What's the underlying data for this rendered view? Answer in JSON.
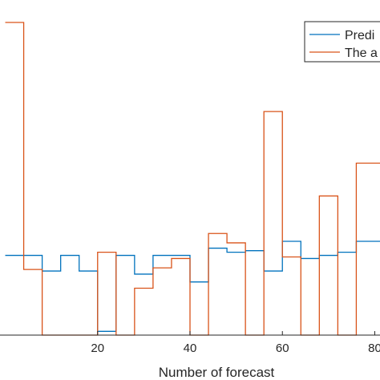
{
  "chart_data": {
    "type": "line",
    "xlabel": "Number of forecast",
    "ylabel": "",
    "title": "",
    "xlim": [
      -2,
      82
    ],
    "ylim": [
      0,
      1.0
    ],
    "xticks": [
      20,
      40,
      60,
      80
    ],
    "xtick_labels": [
      "20",
      "40",
      "60",
      "80"
    ],
    "grid": false,
    "legend_position": "top-right",
    "step_width": 4,
    "x": [
      0,
      4,
      8,
      12,
      16,
      20,
      24,
      28,
      32,
      36,
      40,
      44,
      48,
      52,
      56,
      60,
      64,
      68,
      72,
      76,
      80
    ],
    "series": [
      {
        "name": "Predi",
        "color": "#0072BD",
        "values": [
          0.255,
          0.255,
          0.205,
          0.255,
          0.205,
          0.012,
          0.255,
          0.195,
          0.255,
          0.255,
          0.17,
          0.278,
          0.265,
          0.27,
          0.205,
          0.3,
          0.245,
          0.255,
          0.265,
          0.3,
          0.3
        ]
      },
      {
        "name": "The a",
        "color": "#D95319",
        "values": [
          1.0,
          0.21,
          0.0,
          0.0,
          0.0,
          0.265,
          0.0,
          0.15,
          0.215,
          0.245,
          0.0,
          0.325,
          0.295,
          0.0,
          0.715,
          0.25,
          0.0,
          0.445,
          0.0,
          0.55,
          0.55
        ]
      }
    ]
  }
}
